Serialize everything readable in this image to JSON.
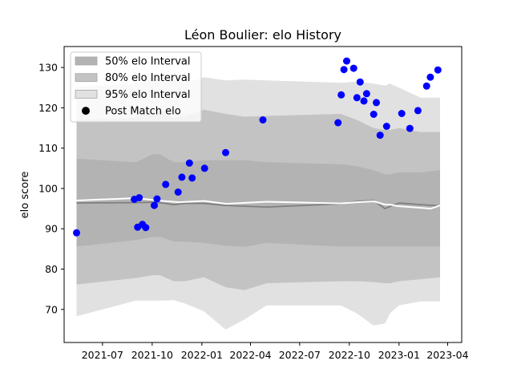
{
  "chart_data": {
    "type": "scatter",
    "title": "Léon Boulier: elo History",
    "xlabel": "",
    "ylabel": "elo score",
    "xlim": [
      "2021-04-21",
      "2023-04-27"
    ],
    "ylim": [
      61.8,
      135.2
    ],
    "grid": false,
    "legend_position": "top-left",
    "x_ticks": [
      "2021-07-01",
      "2021-10-01",
      "2022-01-01",
      "2022-04-01",
      "2022-07-01",
      "2022-10-01",
      "2023-01-01",
      "2023-04-01"
    ],
    "x_tick_labels": [
      "2021-07",
      "2021-10",
      "2022-01",
      "2022-04",
      "2022-07",
      "2022-10",
      "2023-01",
      "2023-04"
    ],
    "y_ticks": [
      70,
      80,
      90,
      100,
      110,
      120,
      130
    ],
    "legend": [
      {
        "label": "50% elo Interval",
        "kind": "band50"
      },
      {
        "label": "80% elo Interval",
        "kind": "band80"
      },
      {
        "label": "95% elo Interval",
        "kind": "band95"
      },
      {
        "label": "Post Match elo",
        "kind": "point"
      }
    ],
    "colors": {
      "band50": "#b3b3b3",
      "band80": "#c3c3c3",
      "band95": "#e1e1e1",
      "median": "#7f7f7f",
      "points": "#0000ff",
      "line": "#ffffff"
    },
    "interval_x": [
      "2021-05-14",
      "2021-09-01",
      "2021-10-02",
      "2021-10-15",
      "2021-11-10",
      "2021-11-30",
      "2022-01-05",
      "2022-02-14",
      "2022-03-21",
      "2022-05-01",
      "2022-09-15",
      "2022-10-15",
      "2022-11-15",
      "2022-12-06",
      "2022-12-15",
      "2023-01-01",
      "2023-02-10",
      "2023-03-18"
    ],
    "median": [
      96.4,
      96.5,
      96.6,
      96.5,
      96.0,
      96.3,
      96.3,
      95.8,
      95.6,
      95.4,
      96.2,
      96.8,
      97.0,
      95.0,
      95.5,
      96.4,
      96.0,
      95.7
    ],
    "band50_upper": [
      107.4,
      106.5,
      108.5,
      108.5,
      106.5,
      106.5,
      107.0,
      107.0,
      107.0,
      106.5,
      106.0,
      105.5,
      104.5,
      103.5,
      103.5,
      104.0,
      104.0,
      104.5
    ],
    "band50_lower": [
      85.6,
      87.2,
      88.0,
      88.0,
      86.8,
      86.8,
      86.5,
      85.8,
      85.5,
      86.5,
      85.6,
      85.6,
      85.6,
      85.6,
      85.6,
      85.6,
      85.6,
      85.6
    ],
    "band80_upper": [
      117.0,
      117.5,
      119.5,
      119.5,
      117.5,
      118.0,
      119.5,
      118.5,
      117.8,
      118.0,
      118.5,
      117.0,
      115.0,
      114.5,
      114.5,
      115.0,
      114.0,
      114.0
    ],
    "band80_lower": [
      76.2,
      77.8,
      78.5,
      78.5,
      77.0,
      77.0,
      78.0,
      75.5,
      74.8,
      76.5,
      77.0,
      77.0,
      76.8,
      76.5,
      76.5,
      77.0,
      77.5,
      78.0
    ],
    "band95_upper": [
      125.2,
      126.0,
      127.5,
      127.5,
      127.5,
      126.0,
      127.6,
      126.8,
      127.0,
      126.8,
      126.2,
      126.5,
      126.0,
      125.5,
      126.0,
      125.0,
      122.5,
      122.5
    ],
    "band95_lower": [
      68.3,
      72.2,
      72.2,
      72.2,
      72.3,
      71.5,
      69.5,
      65.0,
      67.5,
      71.0,
      71.0,
      69.0,
      66.0,
      66.5,
      69.0,
      71.0,
      72.0,
      72.0
    ],
    "line_x": [
      "2021-05-14",
      "2021-09-01",
      "2021-10-20",
      "2021-11-20",
      "2022-01-05",
      "2022-02-15",
      "2022-05-01",
      "2022-09-15",
      "2022-10-15",
      "2022-11-15",
      "2022-12-06",
      "2022-12-15",
      "2023-01-01",
      "2023-02-10",
      "2023-03-01",
      "2023-03-18"
    ],
    "line_y": [
      97.0,
      97.6,
      96.9,
      96.6,
      96.9,
      96.2,
      96.7,
      96.3,
      96.6,
      96.8,
      96.0,
      96.0,
      95.6,
      95.2,
      95.0,
      95.8
    ],
    "points": [
      {
        "x": "2021-05-14",
        "y": 89.0
      },
      {
        "x": "2021-08-29",
        "y": 97.3
      },
      {
        "x": "2021-09-04",
        "y": 90.4
      },
      {
        "x": "2021-09-07",
        "y": 97.7
      },
      {
        "x": "2021-09-13",
        "y": 91.1
      },
      {
        "x": "2021-09-19",
        "y": 90.3
      },
      {
        "x": "2021-10-05",
        "y": 95.8
      },
      {
        "x": "2021-10-10",
        "y": 97.4
      },
      {
        "x": "2021-10-26",
        "y": 101.0
      },
      {
        "x": "2021-11-18",
        "y": 99.1
      },
      {
        "x": "2021-11-25",
        "y": 102.8
      },
      {
        "x": "2021-12-09",
        "y": 106.3
      },
      {
        "x": "2021-12-14",
        "y": 102.6
      },
      {
        "x": "2022-01-06",
        "y": 105.0
      },
      {
        "x": "2022-02-14",
        "y": 108.9
      },
      {
        "x": "2022-04-24",
        "y": 117.0
      },
      {
        "x": "2022-09-10",
        "y": 116.3
      },
      {
        "x": "2022-09-16",
        "y": 123.2
      },
      {
        "x": "2022-09-21",
        "y": 129.5
      },
      {
        "x": "2022-09-26",
        "y": 131.6
      },
      {
        "x": "2022-10-09",
        "y": 129.8
      },
      {
        "x": "2022-10-15",
        "y": 122.5
      },
      {
        "x": "2022-10-21",
        "y": 126.4
      },
      {
        "x": "2022-10-28",
        "y": 121.7
      },
      {
        "x": "2022-11-02",
        "y": 123.5
      },
      {
        "x": "2022-11-15",
        "y": 118.4
      },
      {
        "x": "2022-11-20",
        "y": 121.3
      },
      {
        "x": "2022-11-27",
        "y": 113.2
      },
      {
        "x": "2022-12-09",
        "y": 115.4
      },
      {
        "x": "2023-01-06",
        "y": 118.6
      },
      {
        "x": "2023-01-21",
        "y": 114.9
      },
      {
        "x": "2023-02-05",
        "y": 119.3
      },
      {
        "x": "2023-02-21",
        "y": 125.4
      },
      {
        "x": "2023-02-28",
        "y": 127.6
      },
      {
        "x": "2023-03-14",
        "y": 129.4
      }
    ]
  }
}
